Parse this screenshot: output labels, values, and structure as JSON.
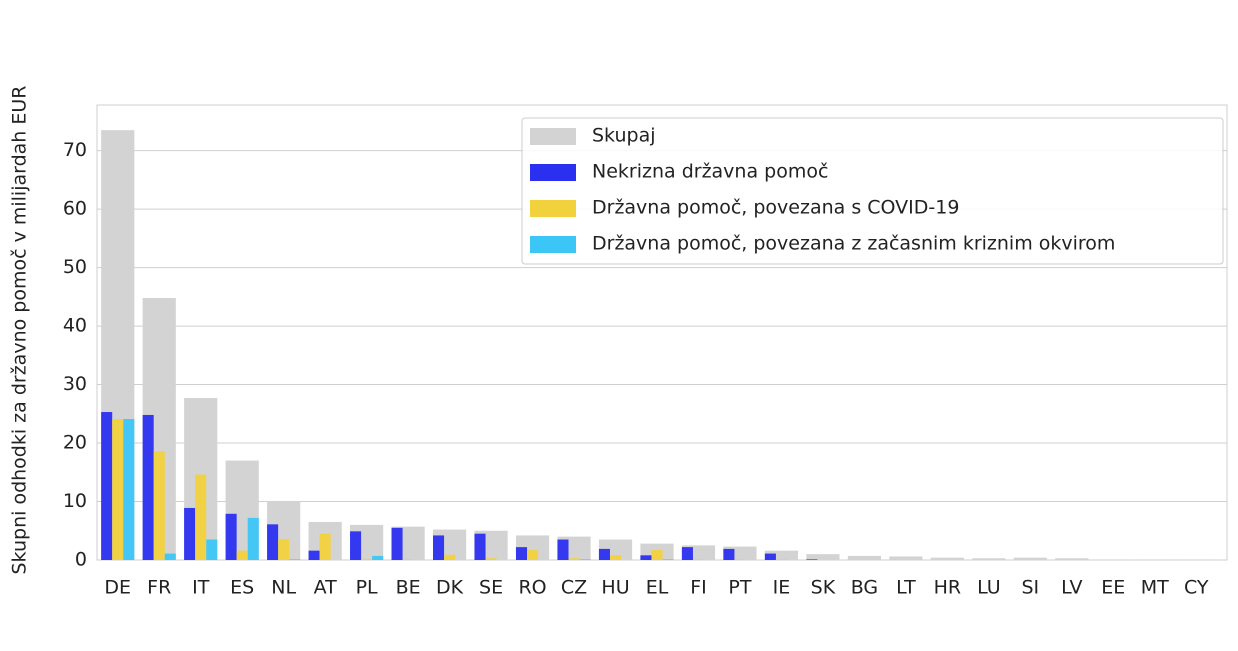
{
  "chart_data": {
    "type": "bar",
    "y_label": "Skupni odhodki za državno pomoč v milijardah EUR",
    "categories": [
      "DE",
      "FR",
      "IT",
      "ES",
      "NL",
      "AT",
      "PL",
      "BE",
      "DK",
      "SE",
      "RO",
      "CZ",
      "HU",
      "EL",
      "FI",
      "PT",
      "IE",
      "SK",
      "BG",
      "LT",
      "HR",
      "LU",
      "SI",
      "LV",
      "EE",
      "MT",
      "CY"
    ],
    "series": [
      {
        "name": "Skupaj",
        "color": "#d3d3d3",
        "values": [
          73.5,
          44.8,
          27.7,
          17.0,
          10.1,
          6.5,
          6.0,
          5.7,
          5.2,
          5.0,
          4.2,
          4.0,
          3.5,
          2.8,
          2.5,
          2.3,
          1.6,
          1.0,
          0.7,
          0.6,
          0.4,
          0.3,
          0.4,
          0.3,
          0.1,
          0.1,
          0.1
        ]
      },
      {
        "name": "Nekrizna državna pomoč",
        "color": "#2b2ff0",
        "values": [
          25.3,
          24.8,
          8.9,
          7.9,
          6.1,
          1.6,
          4.9,
          5.5,
          4.2,
          4.5,
          2.2,
          3.5,
          1.9,
          0.8,
          2.2,
          1.9,
          1.1,
          0.1,
          0,
          0,
          0,
          0,
          0,
          0,
          0,
          0,
          0
        ]
      },
      {
        "name": "Državna pomoč, povezana s COVID-19",
        "color": "#f2d23c",
        "values": [
          24.1,
          18.6,
          14.6,
          1.6,
          3.6,
          4.5,
          0.2,
          0.1,
          0.9,
          0.3,
          1.7,
          0.3,
          0.8,
          1.7,
          0.1,
          0.1,
          0.1,
          0,
          0,
          0,
          0,
          0,
          0,
          0,
          0,
          0,
          0
        ]
      },
      {
        "name": "Državna pomoč, povezana z začasnim kriznim okvirom",
        "color": "#3cc6f5",
        "values": [
          24.1,
          1.1,
          3.5,
          7.2,
          0.1,
          0,
          0.7,
          0,
          0,
          0,
          0,
          0.1,
          0,
          0.1,
          0,
          0,
          0,
          0,
          0,
          0,
          0,
          0,
          0,
          0,
          0,
          0,
          0
        ]
      }
    ],
    "ylim": [
      0,
      77.8
    ],
    "yticks": [
      0,
      10,
      20,
      30,
      40,
      50,
      60,
      70
    ],
    "grid": true,
    "legend": "upper right"
  }
}
